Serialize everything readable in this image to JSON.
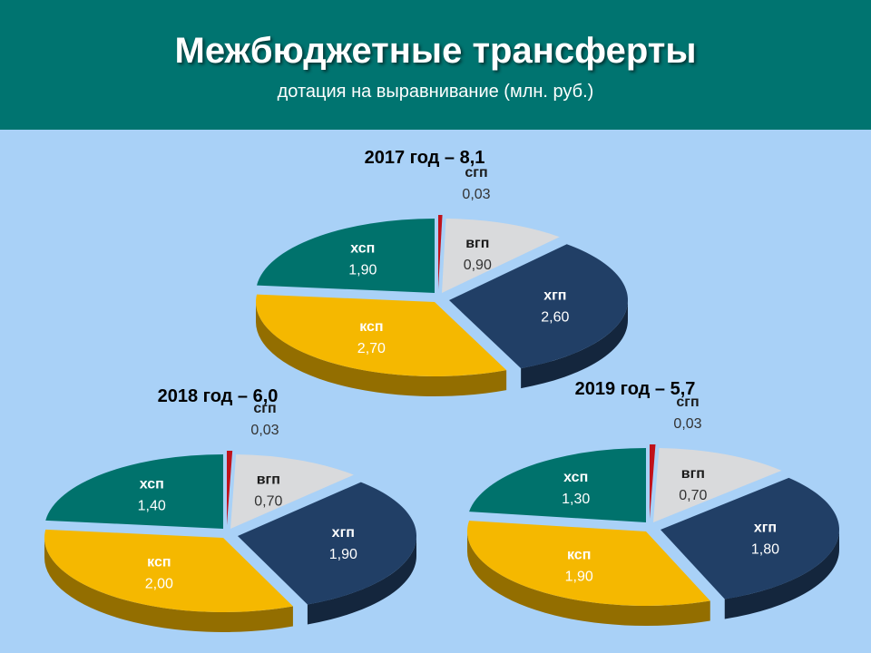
{
  "header": {
    "title": "Межбюджетные трансферты",
    "subtitle": "дотация на выравнивание (млн. руб.)"
  },
  "colors": {
    "header_bg": "#007470",
    "page_bg": "#a9d1f7",
    "сгп": "#c0121b",
    "вгп": "#d9dadc",
    "хгп": "#213f66",
    "ксп": "#f5b800",
    "хсп": "#00726c"
  },
  "chart_data": [
    {
      "type": "pie",
      "title": "2017 год – 8,1",
      "slices": [
        {
          "label": "сгп",
          "value": 0.03,
          "value_text": "0,03",
          "color": "#c0121b"
        },
        {
          "label": "вгп",
          "value": 0.9,
          "value_text": "0,90",
          "color": "#d9dadc"
        },
        {
          "label": "хгп",
          "value": 2.6,
          "value_text": "2,60",
          "color": "#213f66"
        },
        {
          "label": "ксп",
          "value": 2.7,
          "value_text": "2,70",
          "color": "#f5b800"
        },
        {
          "label": "хсп",
          "value": 1.9,
          "value_text": "1,90",
          "color": "#00726c"
        }
      ]
    },
    {
      "type": "pie",
      "title": "2018 год – 6,0",
      "slices": [
        {
          "label": "сгп",
          "value": 0.03,
          "value_text": "0,03",
          "color": "#c0121b"
        },
        {
          "label": "вгп",
          "value": 0.7,
          "value_text": "0,70",
          "color": "#d9dadc"
        },
        {
          "label": "хгп",
          "value": 1.9,
          "value_text": "1,90",
          "color": "#213f66"
        },
        {
          "label": "ксп",
          "value": 2.0,
          "value_text": "2,00",
          "color": "#f5b800"
        },
        {
          "label": "хсп",
          "value": 1.4,
          "value_text": "1,40",
          "color": "#00726c"
        }
      ]
    },
    {
      "type": "pie",
      "title": "2019 год – 5,7",
      "slices": [
        {
          "label": "сгп",
          "value": 0.03,
          "value_text": "0,03",
          "color": "#c0121b"
        },
        {
          "label": "вгп",
          "value": 0.7,
          "value_text": "0,70",
          "color": "#d9dadc"
        },
        {
          "label": "хгп",
          "value": 1.8,
          "value_text": "1,80",
          "color": "#213f66"
        },
        {
          "label": "ксп",
          "value": 1.9,
          "value_text": "1,90",
          "color": "#f5b800"
        },
        {
          "label": "хсп",
          "value": 1.3,
          "value_text": "1,30",
          "color": "#00726c"
        }
      ]
    }
  ]
}
